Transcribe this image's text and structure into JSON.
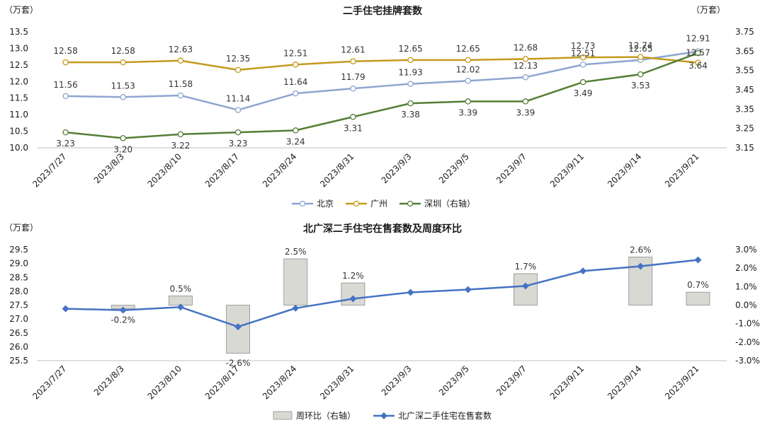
{
  "colors": {
    "beijing": "#8ea5d1",
    "guangzhou": "#c49a1c",
    "shenzhen": "#547e34",
    "total": "#4472c4",
    "bar_fill": "#d9d9d4",
    "bar_stroke": "#8c8c8c"
  },
  "chart_data": [
    {
      "type": "line",
      "title": "二手住宅挂牌套数",
      "left_unit": "（万套）",
      "right_unit": "（万套）",
      "categories": [
        "2023/7/27",
        "2023/8/3",
        "2023/8/10",
        "2023/8/17",
        "2023/8/24",
        "2023/8/31",
        "2023/9/3",
        "2023/9/5",
        "2023/9/7",
        "2023/9/11",
        "2023/9/14",
        "2023/9/21"
      ],
      "ylim": [
        10.0,
        13.5
      ],
      "yticks": [
        "10.0",
        "10.5",
        "11.0",
        "11.5",
        "12.0",
        "12.5",
        "13.0",
        "13.5"
      ],
      "y2lim": [
        3.15,
        3.75
      ],
      "y2ticks": [
        "3.15",
        "3.25",
        "3.35",
        "3.45",
        "3.55",
        "3.65",
        "3.75"
      ],
      "grid": false,
      "legend_position": "bottom",
      "series": [
        {
          "name": "北京",
          "axis": "left",
          "color_key": "beijing",
          "values": [
            11.56,
            11.53,
            11.58,
            11.14,
            11.64,
            11.79,
            11.93,
            12.02,
            12.13,
            12.51,
            12.65,
            12.91
          ],
          "labels": [
            "11.56",
            "11.53",
            "11.58",
            "11.14",
            "11.64",
            "11.79",
            "11.93",
            "12.02",
            "12.13",
            "12.51",
            "12.65",
            "12.91"
          ]
        },
        {
          "name": "广州",
          "axis": "left",
          "color_key": "guangzhou",
          "values": [
            12.58,
            12.58,
            12.63,
            12.35,
            12.51,
            12.61,
            12.65,
            12.65,
            12.68,
            12.73,
            12.74,
            12.57
          ],
          "labels": [
            "12.58",
            "12.58",
            "12.63",
            "12.35",
            "12.51",
            "12.61",
            "12.65",
            "12.65",
            "12.68",
            "12.73",
            "12.74",
            "12.57"
          ]
        },
        {
          "name": "深圳（右轴）",
          "axis": "right",
          "color_key": "shenzhen",
          "values": [
            3.23,
            3.2,
            3.22,
            3.23,
            3.24,
            3.31,
            3.38,
            3.39,
            3.39,
            3.49,
            3.53,
            3.64
          ],
          "labels": [
            "3.23",
            "3.20",
            "3.22",
            "3.23",
            "3.24",
            "3.31",
            "3.38",
            "3.39",
            "3.39",
            "3.49",
            "3.53",
            "3.64"
          ]
        }
      ]
    },
    {
      "type": "bar",
      "title": "北广深二手住宅在售套数及周度环比",
      "left_unit": "（万套）",
      "categories": [
        "2023/7/27",
        "2023/8/3",
        "2023/8/10",
        "2023/8/17",
        "2023/8/24",
        "2023/8/31",
        "2023/9/3",
        "2023/9/5",
        "2023/9/7",
        "2023/9/11",
        "2023/9/14",
        "2023/9/21"
      ],
      "ylim": [
        25.5,
        29.5
      ],
      "yticks": [
        "25.5",
        "26.0",
        "26.5",
        "27.0",
        "27.5",
        "28.0",
        "28.5",
        "29.0",
        "29.5"
      ],
      "y2lim": [
        -3.0,
        3.0
      ],
      "y2ticks": [
        "-3.0%",
        "-2.0%",
        "-1.0%",
        "0.0%",
        "1.0%",
        "2.0%",
        "3.0%"
      ],
      "grid": false,
      "legend_position": "bottom",
      "series": [
        {
          "name": "周环比（右轴）",
          "kind": "bar",
          "axis": "right",
          "values": [
            null,
            -0.2,
            0.5,
            -2.6,
            2.5,
            1.2,
            null,
            null,
            1.7,
            null,
            2.6,
            0.7
          ],
          "labels": [
            "",
            "",
            "0.5%",
            "-2.6%",
            "2.5%",
            "1.2%",
            "",
            "",
            "1.7%",
            "",
            "2.6%",
            "0.7%"
          ]
        },
        {
          "name": "北广深二手住宅在售套数",
          "kind": "line",
          "axis": "left",
          "values": [
            27.37,
            27.32,
            27.43,
            26.72,
            27.39,
            27.73,
            27.96,
            28.06,
            28.19,
            28.73,
            28.9,
            29.13
          ],
          "labels": [
            "",
            "-0.2%",
            "",
            "",
            "",
            "",
            "",
            "",
            "",
            "",
            "",
            ""
          ]
        }
      ]
    }
  ]
}
